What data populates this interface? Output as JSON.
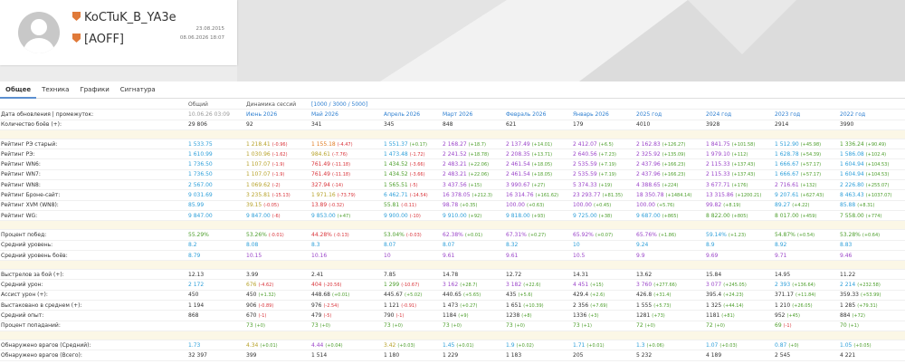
{
  "profile": {
    "name": "KoCTuK_B_YA3e",
    "clan": "[AOFF]",
    "created": "23.08.2015",
    "updated": "08.06.2026 18:07"
  },
  "tabs": [
    "Общее",
    "Техника",
    "Графики",
    "Сигнатура"
  ],
  "table": {
    "header": {
      "total": "Общий",
      "dynamics": "Динамика сессий",
      "range": "[1000 / 3000 / 5000]"
    },
    "sections": [
      [
        {
          "label": "Дата обновления | промежуток:",
          "cells": [
            "10.06.26 03:09",
            "Июнь 2026",
            "Май 2026",
            "Апрель 2026",
            "Март 2026",
            "Февраль 2026",
            "Январь 2026",
            "2025 год",
            "2024 год",
            "2023 год",
            "2022 год"
          ],
          "colors": [
            "#999",
            "#2e7fd0",
            "#2e7fd0",
            "#2e7fd0",
            "#2e7fd0",
            "#2e7fd0",
            "#2e7fd0",
            "#2e7fd0",
            "#2e7fd0",
            "#2e7fd0",
            "#2e7fd0"
          ]
        },
        {
          "label": "Количество боёв (+):",
          "cells": [
            "29 806",
            "92",
            "341",
            "345",
            "848",
            "621",
            "179",
            "4010",
            "3928",
            "2914",
            "3990"
          ]
        }
      ],
      [
        {
          "label": "Рейтинг РЭ старый:",
          "cells": [
            "1 533.75",
            [
              "1 218.41",
              "(-0.96)"
            ],
            [
              "1 155.18",
              "(-4.47)"
            ],
            [
              "1 551.37",
              "(+0.17)"
            ],
            [
              "2 168.27",
              "(+18.7)"
            ],
            [
              "2 137.49",
              "(+14.01)"
            ],
            [
              "2 412.07",
              "(+6.5)"
            ],
            [
              "2 162.83",
              "(+126.27)"
            ],
            [
              "1 841.75",
              "(+101.58)"
            ],
            [
              "1 512.90",
              "(+45.98)"
            ],
            [
              "1 336.24",
              "(+90.49)"
            ]
          ],
          "colors": [
            "#2e9fd9",
            "#b7a22a",
            "#e07a1f",
            "#2e9fd9",
            "#9b45c9",
            "#9b45c9",
            "#9b45c9",
            "#9b45c9",
            "#9b45c9",
            "#2e9fd9",
            "#4c9e2b"
          ]
        },
        {
          "label": "Рейтинг РЭ:",
          "cells": [
            "1 610.99",
            [
              "1 030.96",
              "(-1.62)"
            ],
            [
              "984.61",
              "(-7.76)"
            ],
            [
              "1 473.48",
              "(-1.72)"
            ],
            [
              "2 241.52",
              "(+18.78)"
            ],
            [
              "2 208.35",
              "(+13.71)"
            ],
            [
              "2 640.56",
              "(+7.23)"
            ],
            [
              "2 325.92",
              "(+135.09)"
            ],
            [
              "1 979.10",
              "(+112)"
            ],
            [
              "1 628.78",
              "(+54.39)"
            ],
            [
              "1 586.08",
              "(+102.4)"
            ]
          ],
          "colors": [
            "#2e9fd9",
            "#b7a22a",
            "#b7a22a",
            "#2e9fd9",
            "#9b45c9",
            "#9b45c9",
            "#9b45c9",
            "#9b45c9",
            "#9b45c9",
            "#2e9fd9",
            "#2e9fd9"
          ]
        },
        {
          "label": "Рейтинг WN6:",
          "cells": [
            "1 736.50",
            [
              "1 107.07",
              "(-1.9)"
            ],
            [
              "761.49",
              "(-11.18)"
            ],
            [
              "1 434.52",
              "(-3.66)"
            ],
            [
              "2 483.21",
              "(+22.06)"
            ],
            [
              "2 461.54",
              "(+18.05)"
            ],
            [
              "2 535.59",
              "(+7.19)"
            ],
            [
              "2 437.96",
              "(+166.23)"
            ],
            [
              "2 115.33",
              "(+137.43)"
            ],
            [
              "1 666.67",
              "(+57.17)"
            ],
            [
              "1 604.94",
              "(+104.53)"
            ]
          ],
          "colors": [
            "#2e9fd9",
            "#b7a22a",
            "#d9343a",
            "#4c9e2b",
            "#9b45c9",
            "#9b45c9",
            "#9b45c9",
            "#9b45c9",
            "#9b45c9",
            "#2e9fd9",
            "#2e9fd9"
          ]
        },
        {
          "label": "Рейтинг WN7:",
          "cells": [
            "1 736.50",
            [
              "1 107.07",
              "(-1.9)"
            ],
            [
              "761.49",
              "(-11.18)"
            ],
            [
              "1 434.52",
              "(-3.66)"
            ],
            [
              "2 483.21",
              "(+22.06)"
            ],
            [
              "2 461.54",
              "(+18.05)"
            ],
            [
              "2 535.59",
              "(+7.19)"
            ],
            [
              "2 437.96",
              "(+166.23)"
            ],
            [
              "2 115.33",
              "(+137.43)"
            ],
            [
              "1 666.67",
              "(+57.17)"
            ],
            [
              "1 604.94",
              "(+104.53)"
            ]
          ],
          "colors": [
            "#2e9fd9",
            "#b7a22a",
            "#d9343a",
            "#4c9e2b",
            "#9b45c9",
            "#9b45c9",
            "#9b45c9",
            "#9b45c9",
            "#9b45c9",
            "#2e9fd9",
            "#2e9fd9"
          ]
        },
        {
          "label": "Рейтинг WN8:",
          "cells": [
            "2 567.00",
            [
              "1 069.62",
              "(-2)"
            ],
            [
              "327.94",
              "(-14)"
            ],
            [
              "1 565.51",
              "(-5)"
            ],
            [
              "3 437.56",
              "(+15)"
            ],
            [
              "3 990.67",
              "(+27)"
            ],
            [
              "5 374.33",
              "(+19)"
            ],
            [
              "4 388.65",
              "(+224)"
            ],
            [
              "3 677.71",
              "(+176)"
            ],
            [
              "2 716.61",
              "(+132)"
            ],
            [
              "2 226.80",
              "(+255.07)"
            ]
          ],
          "colors": [
            "#2e9fd9",
            "#b7a22a",
            "#d9343a",
            "#4c9e2b",
            "#9b45c9",
            "#9b45c9",
            "#9b45c9",
            "#9b45c9",
            "#9b45c9",
            "#9b45c9",
            "#2e9fd9"
          ]
        },
        {
          "label": "Рейтинг Броне-сайт:",
          "cells": [
            "9 031.69",
            [
              "3 235.81",
              "(-15.13)"
            ],
            [
              "1 971.16",
              "(-73.79)"
            ],
            [
              "6 462.71",
              "(-14.54)"
            ],
            [
              "16 378.05",
              "(+212.3)"
            ],
            [
              "16 314.76",
              "(+161.62)"
            ],
            [
              "23 293.77",
              "(+81.35)"
            ],
            [
              "18 350.78",
              "(+1484.14)"
            ],
            [
              "13 315.86",
              "(+1200.21)"
            ],
            [
              "9 207.61",
              "(+627.43)"
            ],
            [
              "8 463.43",
              "(+1037.07)"
            ]
          ],
          "colors": [
            "#2e9fd9",
            "#b7a22a",
            "#b7a22a",
            "#2e9fd9",
            "#9b45c9",
            "#9b45c9",
            "#9b45c9",
            "#9b45c9",
            "#9b45c9",
            "#2e9fd9",
            "#2e9fd9"
          ]
        },
        {
          "label": "Рейтинг XVM (WN8):",
          "cells": [
            "85.99",
            [
              "39.15",
              "(-0.05)"
            ],
            [
              "13.89",
              "(-0.32)"
            ],
            [
              "55.81",
              "(-0.11)"
            ],
            [
              "98.78",
              "(+0.35)"
            ],
            [
              "100.00",
              "(+0.63)"
            ],
            [
              "100.00",
              "(+0.45)"
            ],
            [
              "100.00",
              "(+5.76)"
            ],
            [
              "99.82",
              "(+8.19)"
            ],
            [
              "89.27",
              "(+4.22)"
            ],
            [
              "85.88",
              "(+8.31)"
            ]
          ],
          "colors": [
            "#2e9fd9",
            "#b7a22a",
            "#d9343a",
            "#4c9e2b",
            "#9b45c9",
            "#9b45c9",
            "#9b45c9",
            "#9b45c9",
            "#9b45c9",
            "#2e9fd9",
            "#2e9fd9"
          ]
        },
        {
          "label": "Рейтинг WG:",
          "cells": [
            "9 847.00",
            [
              "9 847.00",
              "(-6)"
            ],
            [
              "9 853.00",
              "(+47)"
            ],
            [
              "9 900.00",
              "(-10)"
            ],
            [
              "9 910.00",
              "(+92)"
            ],
            [
              "9 818.00",
              "(+93)"
            ],
            [
              "9 725.00",
              "(+38)"
            ],
            [
              "9 687.00",
              "(+865)"
            ],
            [
              "8 822.00",
              "(+805)"
            ],
            [
              "8 017.00",
              "(+459)"
            ],
            [
              "7 558.00",
              "(+774)"
            ]
          ],
          "colors": [
            "#2e9fd9",
            "#2e9fd9",
            "#2e9fd9",
            "#2e9fd9",
            "#2e9fd9",
            "#2e9fd9",
            "#2e9fd9",
            "#2e9fd9",
            "#4c9e2b",
            "#4c9e2b",
            "#4c9e2b"
          ]
        }
      ],
      [
        {
          "label": "Процент побед:",
          "cells": [
            "55.29%",
            [
              "53.26%",
              "(-0.01)"
            ],
            [
              "44.28%",
              "(-0.13)"
            ],
            [
              "53.04%",
              "(-0.03)"
            ],
            [
              "62.38%",
              "(+0.01)"
            ],
            [
              "67.31%",
              "(+0.27)"
            ],
            [
              "65.92%",
              "(+0.07)"
            ],
            [
              "65.76%",
              "(+1.86)"
            ],
            [
              "59.14%",
              "(+1.23)"
            ],
            [
              "54.87%",
              "(+0.54)"
            ],
            [
              "53.28%",
              "(+0.64)"
            ]
          ],
          "colors": [
            "#4c9e2b",
            "#4c9e2b",
            "#d9343a",
            "#4c9e2b",
            "#9b45c9",
            "#9b45c9",
            "#9b45c9",
            "#9b45c9",
            "#2e9fd9",
            "#4c9e2b",
            "#4c9e2b"
          ]
        },
        {
          "label": "Средний уровень:",
          "cells": [
            "8.2",
            "8.08",
            "8.3",
            "8.07",
            "8.07",
            "8.32",
            "10",
            "9.24",
            "8.9",
            "8.92",
            "8.83"
          ],
          "colors": [
            "#2e9fd9",
            "#2e9fd9",
            "#2e9fd9",
            "#2e9fd9",
            "#2e9fd9",
            "#2e9fd9",
            "#2e9fd9",
            "#2e9fd9",
            "#2e9fd9",
            "#2e9fd9",
            "#2e9fd9"
          ]
        },
        {
          "label": "Средний уровень боёв:",
          "cells": [
            "8.79",
            "10.15",
            "10.16",
            "10",
            "9.61",
            "9.61",
            "10.5",
            "9.9",
            "9.69",
            "9.71",
            "9.46"
          ],
          "colors": [
            "#2e9fd9",
            "#9b45c9",
            "#9b45c9",
            "#9b45c9",
            "#9b45c9",
            "#9b45c9",
            "#9b45c9",
            "#9b45c9",
            "#9b45c9",
            "#9b45c9",
            "#9b45c9"
          ]
        }
      ],
      [
        {
          "label": "Выстрелов за бой (+):",
          "cells": [
            "12.13",
            "3.99",
            "2.41",
            "7.85",
            "14.78",
            "12.72",
            "14.31",
            "13.62",
            "15.84",
            "14.95",
            "11.22"
          ]
        },
        {
          "label": "Средний урон:",
          "cells": [
            "2 172",
            [
              "676",
              "(-4.62)"
            ],
            [
              "404",
              "(-20.56)"
            ],
            [
              "1 299",
              "(-10.67)"
            ],
            [
              "3 162",
              "(+28.7)"
            ],
            [
              "3 182",
              "(+22.6)"
            ],
            [
              "4 451",
              "(+15)"
            ],
            [
              "3 760",
              "(+277.66)"
            ],
            [
              "3 077",
              "(+245.05)"
            ],
            [
              "2 393",
              "(+136.64)"
            ],
            [
              "2 214",
              "(+232.58)"
            ]
          ],
          "colors": [
            "#2e9fd9",
            "#b7a22a",
            "#d9343a",
            "#4c9e2b",
            "#9b45c9",
            "#9b45c9",
            "#9b45c9",
            "#9b45c9",
            "#9b45c9",
            "#2e9fd9",
            "#2e9fd9"
          ]
        },
        {
          "label": "Ассист урон (+):",
          "cells": [
            "450",
            [
              "450",
              "(+1.32)"
            ],
            [
              "448.68",
              "(+0.01)"
            ],
            [
              "445.67",
              "(+5.02)"
            ],
            [
              "440.65",
              "(+5.65)"
            ],
            [
              "435",
              "(+5.6)"
            ],
            [
              "429.4",
              "(+2.6)"
            ],
            [
              "426.8",
              "(+31.4)"
            ],
            [
              "395.4",
              "(+24.23)"
            ],
            [
              "371.17",
              "(+11.84)"
            ],
            [
              "359.33",
              "(+53.99)"
            ]
          ]
        },
        {
          "label": "Выстаковано в среднем (+):",
          "cells": [
            "1 194",
            [
              "906",
              "(-0.89)"
            ],
            [
              "976",
              "(-2.54)"
            ],
            [
              "1 121",
              "(-0.91)"
            ],
            [
              "1 473",
              "(+0.27)"
            ],
            [
              "1 651",
              "(+10.39)"
            ],
            [
              "2 356",
              "(+7.69)"
            ],
            [
              "1 555",
              "(+5.73)"
            ],
            [
              "1 325",
              "(+44.14)"
            ],
            [
              "1 210",
              "(+26.05)"
            ],
            [
              "1 285",
              "(+79.31)"
            ]
          ]
        },
        {
          "label": "Средний опыт:",
          "cells": [
            "868",
            [
              "670",
              "(-1)"
            ],
            [
              "479",
              "(-5)"
            ],
            [
              "790",
              "(-1)"
            ],
            [
              "1184",
              "(+9)"
            ],
            [
              "1238",
              "(+8)"
            ],
            [
              "1336",
              "(+3)"
            ],
            [
              "1281",
              "(+73)"
            ],
            [
              "1181",
              "(+81)"
            ],
            [
              "952",
              "(+45)"
            ],
            [
              "884",
              "(+72)"
            ]
          ]
        },
        {
          "label": "Процент попаданий:",
          "cells": [
            null,
            [
              "73",
              "(+0)"
            ],
            [
              "73",
              "(+0)"
            ],
            [
              "73",
              "(+0)"
            ],
            [
              "73",
              "(+0)"
            ],
            [
              "73",
              "(+0)"
            ],
            [
              "73",
              "(+1)"
            ],
            [
              "72",
              "(+0)"
            ],
            [
              "72",
              "(+0)"
            ],
            [
              "69",
              "(-1)"
            ],
            [
              "70",
              "(+1)"
            ]
          ],
          "colors": [
            "#4c9e2b",
            "#4c9e2b",
            "#4c9e2b",
            "#4c9e2b",
            "#4c9e2b",
            "#4c9e2b",
            "#4c9e2b",
            "#4c9e2b",
            "#4c9e2b",
            "#4c9e2b",
            "#4c9e2b"
          ]
        }
      ],
      [
        {
          "label": "Обнаружено врагов (Средний):",
          "cells": [
            "1.73",
            [
              "4.34",
              "(+0.01)"
            ],
            [
              "4.44",
              "(+0.04)"
            ],
            [
              "3.42",
              "(+0.03)"
            ],
            [
              "1.45",
              "(+0.01)"
            ],
            [
              "1.9",
              "(+0.02)"
            ],
            [
              "1.71",
              "(+0.01)"
            ],
            [
              "1.3",
              "(+0.06)"
            ],
            [
              "1.07",
              "(+0.03)"
            ],
            [
              "0.87",
              "(+0)"
            ],
            [
              "1.05",
              "(+0.05)"
            ]
          ],
          "colors": [
            "#2e9fd9",
            "#b7a22a",
            "#9b45c9",
            "#b7a22a",
            "#2e9fd9",
            "#2e9fd9",
            "#2e9fd9",
            "#2e9fd9",
            "#2e9fd9",
            "#2e9fd9",
            "#2e9fd9"
          ]
        },
        {
          "label": "Обнаружено врагов (Всего):",
          "cells": [
            "32 397",
            "399",
            "1 514",
            "1 180",
            "1 229",
            "1 183",
            "205",
            "5 232",
            "4 189",
            "2 545",
            "4 221"
          ]
        }
      ]
    ]
  }
}
